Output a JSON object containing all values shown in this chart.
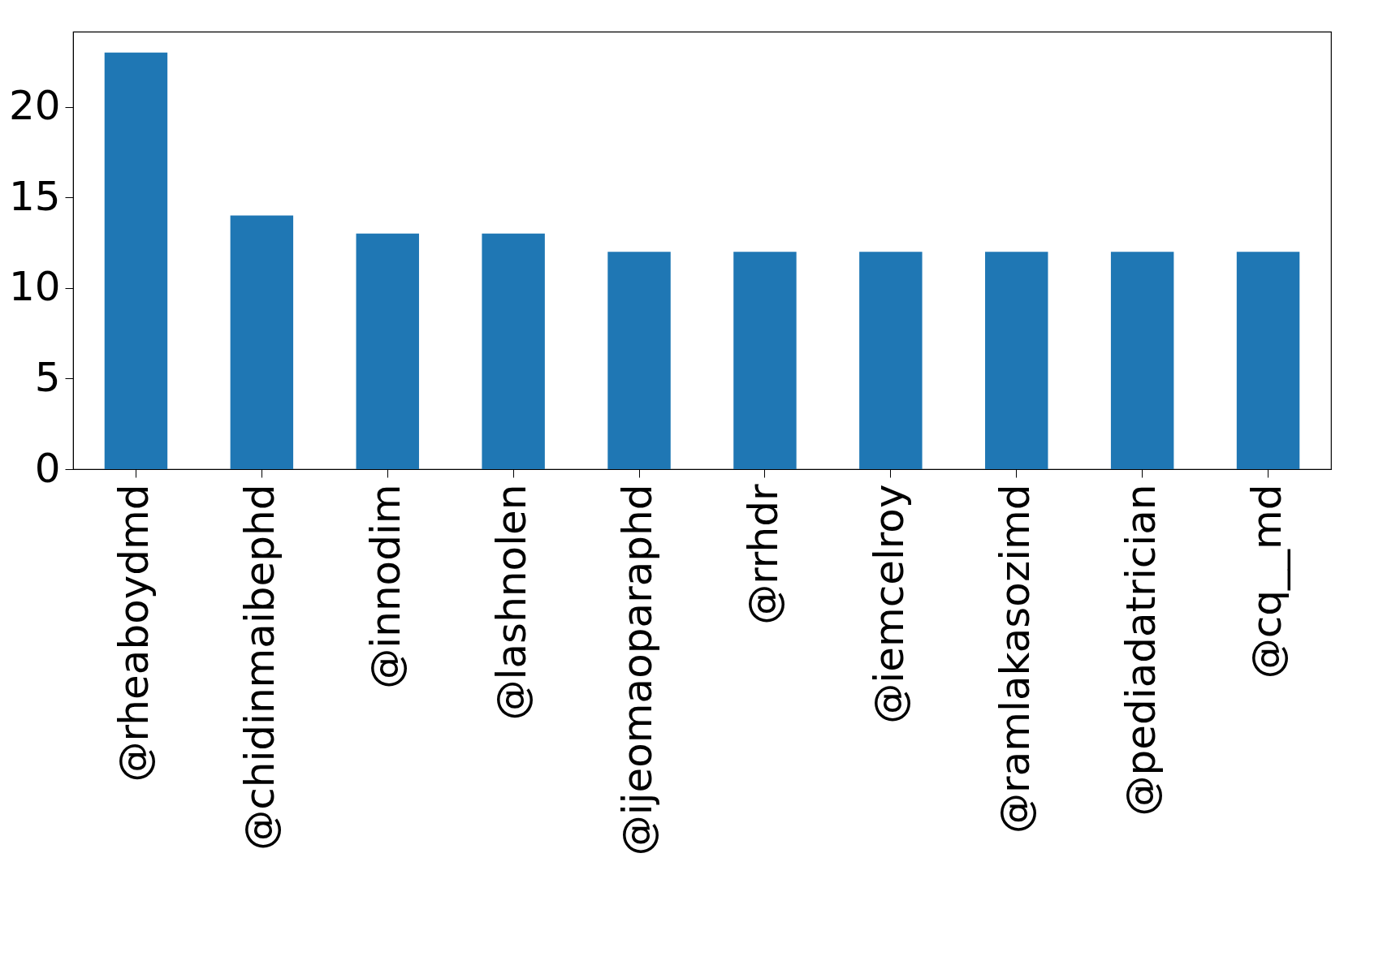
{
  "chart_data": {
    "type": "bar",
    "categories": [
      "@rheaboydmd",
      "@chidinmaibephd",
      "@innodim",
      "@lashnolen",
      "@ijeomaoparaphd",
      "@rrhdr",
      "@iemcelroy",
      "@ramlakasozimd",
      "@pediadatrician",
      "@cq__md"
    ],
    "values": [
      23,
      14,
      13,
      13,
      12,
      12,
      12,
      12,
      12,
      12
    ],
    "color": "#1f77b4",
    "ylim": [
      0,
      24.15
    ],
    "yticks": [
      0,
      5,
      10,
      15,
      20
    ],
    "grid": false
  }
}
